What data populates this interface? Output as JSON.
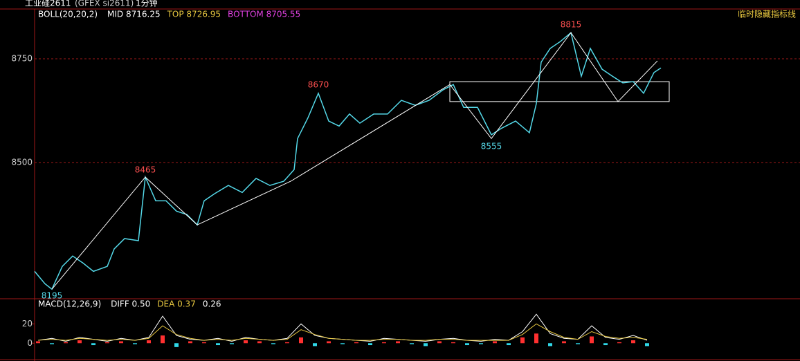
{
  "header": {
    "symbol": "工业硅2611",
    "code": "(GFEX si2611)",
    "period": "1分钟"
  },
  "hide_indicators": "临时隐藏指标线",
  "chart_data": [
    {
      "type": "line",
      "indicator": {
        "name": "BOLL(20,20,2)",
        "items": [
          {
            "text": "MID 8716.25",
            "color": "#ffffff"
          },
          {
            "text": "TOP 8726.95",
            "color": "#e8c840"
          },
          {
            "text": "BOTTOM 8705.55",
            "color": "#e040e0"
          }
        ]
      },
      "xlim": [
        0,
        1106
      ],
      "ylim": [
        8172,
        8870
      ],
      "yticks": [
        8500,
        8750
      ],
      "grid": true,
      "grid_color": "#a01818",
      "series": [
        {
          "name": "price",
          "color": "#54d8e8",
          "x": [
            0,
            15,
            25,
            40,
            55,
            70,
            85,
            105,
            115,
            130,
            150,
            160,
            175,
            190,
            205,
            220,
            235,
            245,
            260,
            280,
            300,
            320,
            340,
            360,
            375,
            380,
            395,
            410,
            425,
            440,
            455,
            470,
            490,
            510,
            530,
            550,
            570,
            590,
            605,
            620,
            640,
            660,
            675,
            695,
            715,
            725,
            732,
            745,
            760,
            775,
            790,
            803,
            820,
            835,
            850,
            865,
            880,
            895,
            905
          ],
          "values": [
            8238,
            8208,
            8195,
            8250,
            8275,
            8258,
            8238,
            8250,
            8292,
            8317,
            8312,
            8465,
            8408,
            8408,
            8383,
            8375,
            8350,
            8408,
            8425,
            8445,
            8428,
            8462,
            8445,
            8455,
            8483,
            8558,
            8608,
            8667,
            8600,
            8588,
            8617,
            8595,
            8617,
            8617,
            8650,
            8638,
            8650,
            8675,
            8688,
            8633,
            8633,
            8567,
            8583,
            8600,
            8572,
            8642,
            8742,
            8775,
            8792,
            8813,
            8708,
            8775,
            8725,
            8708,
            8692,
            8695,
            8667,
            8717,
            8728
          ]
        },
        {
          "name": "zigzag",
          "color": "#ffffff",
          "x": [
            25,
            160,
            235,
            370,
            600,
            660,
            775,
            843,
            900
          ],
          "values": [
            8195,
            8465,
            8350,
            8455,
            8688,
            8558,
            8813,
            8647,
            8745
          ]
        }
      ],
      "pivot_labels": [
        {
          "x": 25,
          "value": 8195,
          "position": "below",
          "color": "#54d8e8"
        },
        {
          "x": 160,
          "value": 8465,
          "position": "above",
          "color": "#ff5050"
        },
        {
          "x": 410,
          "value": 8670,
          "position": "above",
          "color": "#ff5050"
        },
        {
          "x": 660,
          "value": 8555,
          "position": "below",
          "color": "#54d8e8"
        },
        {
          "x": 775,
          "value": 8815,
          "position": "above",
          "color": "#ff5050"
        }
      ],
      "box": {
        "x": [
          600,
          917
        ],
        "values": [
          8695,
          8647
        ],
        "color": "#ffffff"
      }
    },
    {
      "type": "macd",
      "indicator": {
        "name": "MACD(12,26,9)",
        "items": [
          {
            "text": "DIFF 0.50",
            "color": "#ffffff"
          },
          {
            "text": "DEA 0.37",
            "color": "#e8c840"
          },
          {
            "text": "0.26",
            "color": "#ffffff"
          }
        ]
      },
      "xlim": [
        0,
        1106
      ],
      "ylim": [
        -17,
        46
      ],
      "yticks": [
        0,
        20
      ],
      "up_color": "#ff3030",
      "down_color": "#30d8e8",
      "x": [
        5,
        25,
        45,
        65,
        85,
        105,
        125,
        145,
        165,
        185,
        205,
        225,
        245,
        265,
        285,
        305,
        325,
        345,
        365,
        385,
        405,
        425,
        445,
        465,
        485,
        505,
        525,
        545,
        565,
        585,
        605,
        625,
        645,
        665,
        685,
        705,
        725,
        745,
        765,
        785,
        805,
        825,
        845,
        865,
        885
      ],
      "histogram": [
        2,
        -1,
        1,
        3,
        -2,
        1,
        2,
        -1,
        3,
        8,
        -4,
        2,
        1,
        -2,
        -1,
        3,
        2,
        -1,
        1,
        6,
        -3,
        2,
        -1,
        1,
        -2,
        1,
        2,
        -1,
        -3,
        2,
        1,
        -2,
        -1,
        2,
        -2,
        6,
        10,
        -3,
        2,
        -1,
        7,
        -2,
        1,
        3,
        -3
      ],
      "series": [
        {
          "name": "DIFF",
          "color": "#ffffff",
          "values": [
            3,
            5,
            2,
            6,
            4,
            2,
            5,
            3,
            6,
            28,
            8,
            4,
            3,
            5,
            2,
            6,
            4,
            3,
            5,
            20,
            8,
            5,
            4,
            3,
            2,
            5,
            4,
            3,
            2,
            4,
            5,
            3,
            2,
            4,
            3,
            12,
            30,
            10,
            5,
            4,
            18,
            6,
            4,
            8,
            3
          ]
        },
        {
          "name": "DEA",
          "color": "#e8c840",
          "values": [
            3,
            4,
            3,
            5,
            4,
            3,
            4,
            3,
            5,
            18,
            9,
            5,
            3,
            4,
            3,
            5,
            4,
            3,
            4,
            14,
            9,
            5,
            4,
            3,
            3,
            4,
            4,
            3,
            3,
            4,
            4,
            3,
            3,
            3,
            3,
            9,
            20,
            12,
            6,
            4,
            12,
            7,
            5,
            6,
            4
          ]
        }
      ]
    }
  ]
}
